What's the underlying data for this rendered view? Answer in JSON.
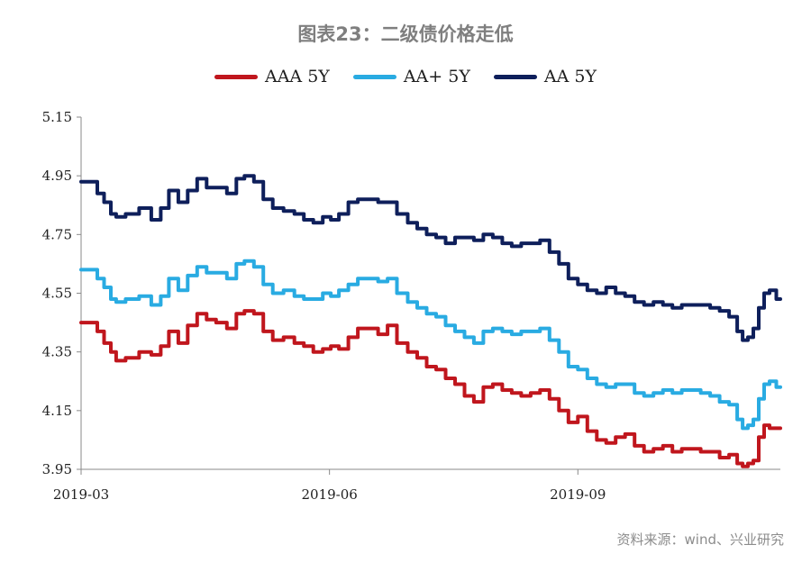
{
  "chart_data": {
    "type": "line",
    "title": "图表23：二级债价格走低",
    "xlabel": "",
    "ylabel": "",
    "x_ticks": [
      "2019-03",
      "2019-06",
      "2019-09"
    ],
    "y_ticks": [
      "5.15",
      "4.95",
      "4.75",
      "4.55",
      "4.35",
      "4.15",
      "3.95"
    ],
    "ylim": [
      3.95,
      5.15
    ],
    "xlim": [
      "2019-03-01",
      "2019-11-15"
    ],
    "grid": false,
    "legend": "top-center",
    "series": [
      {
        "name": "AAA 5Y",
        "color": "#c0161d",
        "points": [
          [
            "2019-03-01",
            4.45
          ],
          [
            "2019-03-06",
            4.45
          ],
          [
            "2019-03-08",
            4.42
          ],
          [
            "2019-03-11",
            4.38
          ],
          [
            "2019-03-13",
            4.35
          ],
          [
            "2019-03-15",
            4.32
          ],
          [
            "2019-03-20",
            4.33
          ],
          [
            "2019-03-25",
            4.35
          ],
          [
            "2019-03-29",
            4.34
          ],
          [
            "2019-04-01",
            4.37
          ],
          [
            "2019-04-04",
            4.42
          ],
          [
            "2019-04-08",
            4.38
          ],
          [
            "2019-04-11",
            4.44
          ],
          [
            "2019-04-15",
            4.48
          ],
          [
            "2019-04-18",
            4.46
          ],
          [
            "2019-04-22",
            4.45
          ],
          [
            "2019-04-26",
            4.43
          ],
          [
            "2019-04-29",
            4.48
          ],
          [
            "2019-05-02",
            4.49
          ],
          [
            "2019-05-06",
            4.48
          ],
          [
            "2019-05-09",
            4.42
          ],
          [
            "2019-05-13",
            4.39
          ],
          [
            "2019-05-17",
            4.4
          ],
          [
            "2019-05-21",
            4.38
          ],
          [
            "2019-05-24",
            4.37
          ],
          [
            "2019-05-28",
            4.35
          ],
          [
            "2019-05-31",
            4.36
          ],
          [
            "2019-06-03",
            4.37
          ],
          [
            "2019-06-06",
            4.36
          ],
          [
            "2019-06-10",
            4.4
          ],
          [
            "2019-06-13",
            4.43
          ],
          [
            "2019-06-17",
            4.43
          ],
          [
            "2019-06-21",
            4.41
          ],
          [
            "2019-06-24",
            4.44
          ],
          [
            "2019-06-28",
            4.38
          ],
          [
            "2019-07-02",
            4.35
          ],
          [
            "2019-07-05",
            4.33
          ],
          [
            "2019-07-09",
            4.3
          ],
          [
            "2019-07-12",
            4.29
          ],
          [
            "2019-07-16",
            4.26
          ],
          [
            "2019-07-19",
            4.24
          ],
          [
            "2019-07-23",
            4.2
          ],
          [
            "2019-07-26",
            4.18
          ],
          [
            "2019-07-30",
            4.23
          ],
          [
            "2019-08-02",
            4.24
          ],
          [
            "2019-08-06",
            4.22
          ],
          [
            "2019-08-09",
            4.21
          ],
          [
            "2019-08-13",
            4.2
          ],
          [
            "2019-08-16",
            4.21
          ],
          [
            "2019-08-20",
            4.22
          ],
          [
            "2019-08-23",
            4.19
          ],
          [
            "2019-08-27",
            4.15
          ],
          [
            "2019-08-30",
            4.11
          ],
          [
            "2019-09-03",
            4.13
          ],
          [
            "2019-09-06",
            4.08
          ],
          [
            "2019-09-10",
            4.05
          ],
          [
            "2019-09-13",
            4.04
          ],
          [
            "2019-09-17",
            4.06
          ],
          [
            "2019-09-20",
            4.07
          ],
          [
            "2019-09-24",
            4.03
          ],
          [
            "2019-09-27",
            4.01
          ],
          [
            "2019-10-01",
            4.02
          ],
          [
            "2019-10-04",
            4.03
          ],
          [
            "2019-10-08",
            4.01
          ],
          [
            "2019-10-11",
            4.02
          ],
          [
            "2019-10-15",
            4.02
          ],
          [
            "2019-10-18",
            4.01
          ],
          [
            "2019-10-22",
            4.01
          ],
          [
            "2019-10-25",
            3.99
          ],
          [
            "2019-10-29",
            4.0
          ],
          [
            "2019-10-31",
            3.97
          ],
          [
            "2019-11-02",
            3.96
          ],
          [
            "2019-11-04",
            3.97
          ],
          [
            "2019-11-06",
            3.98
          ],
          [
            "2019-11-08",
            4.06
          ],
          [
            "2019-11-10",
            4.1
          ],
          [
            "2019-11-12",
            4.09
          ],
          [
            "2019-11-15",
            4.09
          ]
        ]
      },
      {
        "name": "AA+ 5Y",
        "color": "#29abe2",
        "points": [
          [
            "2019-03-01",
            4.63
          ],
          [
            "2019-03-06",
            4.63
          ],
          [
            "2019-03-08",
            4.6
          ],
          [
            "2019-03-11",
            4.57
          ],
          [
            "2019-03-13",
            4.53
          ],
          [
            "2019-03-15",
            4.52
          ],
          [
            "2019-03-20",
            4.53
          ],
          [
            "2019-03-25",
            4.54
          ],
          [
            "2019-03-29",
            4.51
          ],
          [
            "2019-04-01",
            4.54
          ],
          [
            "2019-04-04",
            4.6
          ],
          [
            "2019-04-08",
            4.56
          ],
          [
            "2019-04-11",
            4.61
          ],
          [
            "2019-04-15",
            4.64
          ],
          [
            "2019-04-18",
            4.62
          ],
          [
            "2019-04-22",
            4.62
          ],
          [
            "2019-04-26",
            4.6
          ],
          [
            "2019-04-29",
            4.65
          ],
          [
            "2019-05-02",
            4.66
          ],
          [
            "2019-05-06",
            4.64
          ],
          [
            "2019-05-09",
            4.58
          ],
          [
            "2019-05-13",
            4.55
          ],
          [
            "2019-05-17",
            4.56
          ],
          [
            "2019-05-21",
            4.54
          ],
          [
            "2019-05-24",
            4.53
          ],
          [
            "2019-05-28",
            4.53
          ],
          [
            "2019-05-31",
            4.55
          ],
          [
            "2019-06-03",
            4.54
          ],
          [
            "2019-06-06",
            4.56
          ],
          [
            "2019-06-10",
            4.58
          ],
          [
            "2019-06-13",
            4.6
          ],
          [
            "2019-06-17",
            4.6
          ],
          [
            "2019-06-21",
            4.59
          ],
          [
            "2019-06-24",
            4.6
          ],
          [
            "2019-06-28",
            4.55
          ],
          [
            "2019-07-02",
            4.52
          ],
          [
            "2019-07-05",
            4.5
          ],
          [
            "2019-07-09",
            4.48
          ],
          [
            "2019-07-12",
            4.47
          ],
          [
            "2019-07-16",
            4.44
          ],
          [
            "2019-07-19",
            4.42
          ],
          [
            "2019-07-23",
            4.4
          ],
          [
            "2019-07-26",
            4.38
          ],
          [
            "2019-07-30",
            4.42
          ],
          [
            "2019-08-02",
            4.43
          ],
          [
            "2019-08-06",
            4.42
          ],
          [
            "2019-08-09",
            4.41
          ],
          [
            "2019-08-13",
            4.42
          ],
          [
            "2019-08-16",
            4.42
          ],
          [
            "2019-08-20",
            4.43
          ],
          [
            "2019-08-23",
            4.39
          ],
          [
            "2019-08-27",
            4.35
          ],
          [
            "2019-08-30",
            4.3
          ],
          [
            "2019-09-03",
            4.29
          ],
          [
            "2019-09-06",
            4.26
          ],
          [
            "2019-09-10",
            4.24
          ],
          [
            "2019-09-13",
            4.23
          ],
          [
            "2019-09-17",
            4.24
          ],
          [
            "2019-09-20",
            4.24
          ],
          [
            "2019-09-24",
            4.21
          ],
          [
            "2019-09-27",
            4.2
          ],
          [
            "2019-10-01",
            4.21
          ],
          [
            "2019-10-04",
            4.22
          ],
          [
            "2019-10-08",
            4.21
          ],
          [
            "2019-10-11",
            4.22
          ],
          [
            "2019-10-15",
            4.22
          ],
          [
            "2019-10-18",
            4.21
          ],
          [
            "2019-10-22",
            4.2
          ],
          [
            "2019-10-25",
            4.18
          ],
          [
            "2019-10-29",
            4.17
          ],
          [
            "2019-10-31",
            4.12
          ],
          [
            "2019-11-02",
            4.09
          ],
          [
            "2019-11-04",
            4.1
          ],
          [
            "2019-11-06",
            4.12
          ],
          [
            "2019-11-08",
            4.19
          ],
          [
            "2019-11-10",
            4.24
          ],
          [
            "2019-11-12",
            4.25
          ],
          [
            "2019-11-15",
            4.23
          ]
        ]
      },
      {
        "name": "AA 5Y",
        "color": "#0e1f5b",
        "points": [
          [
            "2019-03-01",
            4.93
          ],
          [
            "2019-03-06",
            4.93
          ],
          [
            "2019-03-08",
            4.89
          ],
          [
            "2019-03-11",
            4.86
          ],
          [
            "2019-03-13",
            4.82
          ],
          [
            "2019-03-15",
            4.81
          ],
          [
            "2019-03-20",
            4.82
          ],
          [
            "2019-03-25",
            4.84
          ],
          [
            "2019-03-29",
            4.8
          ],
          [
            "2019-04-01",
            4.84
          ],
          [
            "2019-04-04",
            4.9
          ],
          [
            "2019-04-08",
            4.86
          ],
          [
            "2019-04-11",
            4.9
          ],
          [
            "2019-04-15",
            4.94
          ],
          [
            "2019-04-18",
            4.91
          ],
          [
            "2019-04-22",
            4.91
          ],
          [
            "2019-04-26",
            4.89
          ],
          [
            "2019-04-29",
            4.94
          ],
          [
            "2019-05-02",
            4.95
          ],
          [
            "2019-05-06",
            4.93
          ],
          [
            "2019-05-09",
            4.87
          ],
          [
            "2019-05-13",
            4.84
          ],
          [
            "2019-05-17",
            4.83
          ],
          [
            "2019-05-21",
            4.82
          ],
          [
            "2019-05-24",
            4.8
          ],
          [
            "2019-05-28",
            4.79
          ],
          [
            "2019-05-31",
            4.81
          ],
          [
            "2019-06-03",
            4.8
          ],
          [
            "2019-06-06",
            4.82
          ],
          [
            "2019-06-10",
            4.86
          ],
          [
            "2019-06-13",
            4.87
          ],
          [
            "2019-06-17",
            4.87
          ],
          [
            "2019-06-21",
            4.86
          ],
          [
            "2019-06-24",
            4.86
          ],
          [
            "2019-06-28",
            4.82
          ],
          [
            "2019-07-02",
            4.79
          ],
          [
            "2019-07-05",
            4.77
          ],
          [
            "2019-07-09",
            4.75
          ],
          [
            "2019-07-12",
            4.74
          ],
          [
            "2019-07-16",
            4.72
          ],
          [
            "2019-07-19",
            4.74
          ],
          [
            "2019-07-23",
            4.74
          ],
          [
            "2019-07-26",
            4.73
          ],
          [
            "2019-07-30",
            4.75
          ],
          [
            "2019-08-02",
            4.74
          ],
          [
            "2019-08-06",
            4.72
          ],
          [
            "2019-08-09",
            4.71
          ],
          [
            "2019-08-13",
            4.72
          ],
          [
            "2019-08-16",
            4.72
          ],
          [
            "2019-08-20",
            4.73
          ],
          [
            "2019-08-23",
            4.69
          ],
          [
            "2019-08-27",
            4.65
          ],
          [
            "2019-08-30",
            4.6
          ],
          [
            "2019-09-03",
            4.58
          ],
          [
            "2019-09-06",
            4.56
          ],
          [
            "2019-09-10",
            4.55
          ],
          [
            "2019-09-13",
            4.57
          ],
          [
            "2019-09-17",
            4.55
          ],
          [
            "2019-09-20",
            4.54
          ],
          [
            "2019-09-24",
            4.52
          ],
          [
            "2019-09-27",
            4.51
          ],
          [
            "2019-10-01",
            4.52
          ],
          [
            "2019-10-04",
            4.51
          ],
          [
            "2019-10-08",
            4.5
          ],
          [
            "2019-10-11",
            4.51
          ],
          [
            "2019-10-15",
            4.51
          ],
          [
            "2019-10-18",
            4.51
          ],
          [
            "2019-10-22",
            4.5
          ],
          [
            "2019-10-25",
            4.49
          ],
          [
            "2019-10-29",
            4.47
          ],
          [
            "2019-10-31",
            4.42
          ],
          [
            "2019-11-02",
            4.39
          ],
          [
            "2019-11-04",
            4.4
          ],
          [
            "2019-11-06",
            4.43
          ],
          [
            "2019-11-08",
            4.5
          ],
          [
            "2019-11-10",
            4.55
          ],
          [
            "2019-11-12",
            4.56
          ],
          [
            "2019-11-15",
            4.53
          ]
        ]
      }
    ]
  },
  "source": "资料来源：wind、兴业研究"
}
